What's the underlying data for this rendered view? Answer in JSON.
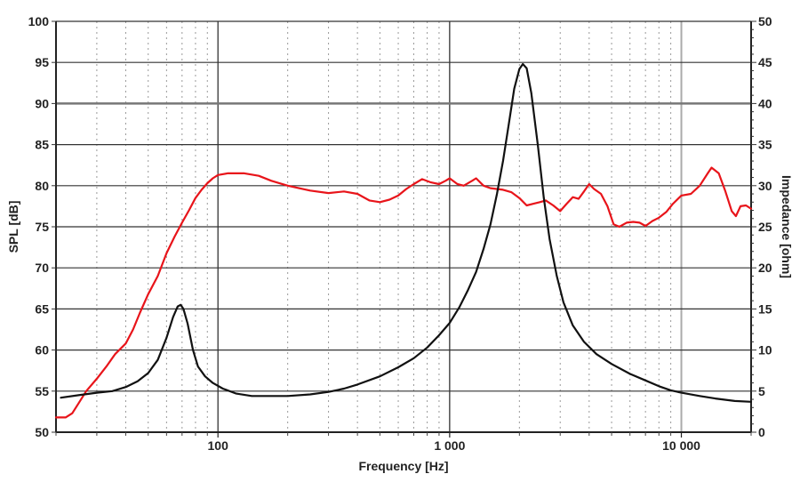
{
  "chart_data": {
    "type": "line",
    "title": "",
    "xlabel": "Frequency [Hz]",
    "ylabel": "SPL [dB]",
    "y2label": "Impedance [ohm]",
    "xscale": "log",
    "xlim": [
      20,
      20000
    ],
    "ylim": [
      50,
      100
    ],
    "y2lim": [
      0,
      50
    ],
    "grid": true,
    "x_tick_labels": [
      {
        "value": 100,
        "label": "100"
      },
      {
        "value": 1000,
        "label": "1 000"
      },
      {
        "value": 10000,
        "label": "10 000"
      }
    ],
    "y_ticks": [
      50,
      55,
      60,
      65,
      70,
      75,
      80,
      85,
      90,
      95,
      100
    ],
    "y2_ticks": [
      0,
      5,
      10,
      15,
      20,
      25,
      30,
      35,
      40,
      45,
      50
    ],
    "legend": "none",
    "series": [
      {
        "name": "SPL",
        "axis": "left",
        "color": "#e8141a",
        "points": [
          [
            20,
            51.8
          ],
          [
            22,
            51.8
          ],
          [
            23.5,
            52.3
          ],
          [
            25,
            53.5
          ],
          [
            27,
            55.0
          ],
          [
            30,
            56.5
          ],
          [
            33,
            58.0
          ],
          [
            36,
            59.5
          ],
          [
            40,
            60.8
          ],
          [
            43,
            62.5
          ],
          [
            46,
            64.5
          ],
          [
            50,
            66.8
          ],
          [
            55,
            69.0
          ],
          [
            60,
            71.8
          ],
          [
            65,
            73.8
          ],
          [
            70,
            75.5
          ],
          [
            75,
            77.0
          ],
          [
            80,
            78.5
          ],
          [
            85,
            79.5
          ],
          [
            90,
            80.3
          ],
          [
            95,
            80.9
          ],
          [
            100,
            81.3
          ],
          [
            110,
            81.5
          ],
          [
            130,
            81.5
          ],
          [
            150,
            81.2
          ],
          [
            170,
            80.6
          ],
          [
            200,
            80.0
          ],
          [
            250,
            79.4
          ],
          [
            300,
            79.1
          ],
          [
            350,
            79.3
          ],
          [
            400,
            79.0
          ],
          [
            450,
            78.2
          ],
          [
            500,
            78.0
          ],
          [
            550,
            78.3
          ],
          [
            600,
            78.8
          ],
          [
            650,
            79.6
          ],
          [
            700,
            80.2
          ],
          [
            760,
            80.8
          ],
          [
            830,
            80.4
          ],
          [
            900,
            80.2
          ],
          [
            960,
            80.6
          ],
          [
            1000,
            80.9
          ],
          [
            1080,
            80.2
          ],
          [
            1150,
            80.0
          ],
          [
            1250,
            80.6
          ],
          [
            1300,
            80.9
          ],
          [
            1400,
            80.0
          ],
          [
            1500,
            79.7
          ],
          [
            1700,
            79.5
          ],
          [
            1850,
            79.2
          ],
          [
            2000,
            78.5
          ],
          [
            2150,
            77.6
          ],
          [
            2300,
            77.8
          ],
          [
            2450,
            78.0
          ],
          [
            2600,
            78.2
          ],
          [
            2800,
            77.6
          ],
          [
            3000,
            76.9
          ],
          [
            3200,
            77.8
          ],
          [
            3400,
            78.6
          ],
          [
            3600,
            78.4
          ],
          [
            3800,
            79.3
          ],
          [
            4000,
            80.2
          ],
          [
            4200,
            79.6
          ],
          [
            4500,
            79.0
          ],
          [
            4800,
            77.5
          ],
          [
            5100,
            75.3
          ],
          [
            5400,
            75.0
          ],
          [
            5800,
            75.5
          ],
          [
            6200,
            75.6
          ],
          [
            6600,
            75.5
          ],
          [
            7000,
            75.1
          ],
          [
            7500,
            75.7
          ],
          [
            8000,
            76.1
          ],
          [
            8600,
            76.8
          ],
          [
            9200,
            77.8
          ],
          [
            10000,
            78.8
          ],
          [
            11000,
            79.0
          ],
          [
            12000,
            80.0
          ],
          [
            13000,
            81.5
          ],
          [
            13500,
            82.2
          ],
          [
            14500,
            81.5
          ],
          [
            15500,
            79.3
          ],
          [
            16500,
            76.9
          ],
          [
            17200,
            76.3
          ],
          [
            18000,
            77.5
          ],
          [
            19000,
            77.6
          ],
          [
            20000,
            77.2
          ]
        ]
      },
      {
        "name": "Impedance",
        "axis": "right",
        "color": "#111111",
        "points": [
          [
            21,
            4.2
          ],
          [
            25,
            4.5
          ],
          [
            30,
            4.8
          ],
          [
            35,
            5.0
          ],
          [
            40,
            5.5
          ],
          [
            45,
            6.2
          ],
          [
            50,
            7.2
          ],
          [
            55,
            8.8
          ],
          [
            60,
            11.5
          ],
          [
            64,
            14.0
          ],
          [
            67,
            15.3
          ],
          [
            69,
            15.5
          ],
          [
            71,
            15.0
          ],
          [
            74,
            13.2
          ],
          [
            78,
            10.0
          ],
          [
            82,
            8.0
          ],
          [
            88,
            6.8
          ],
          [
            95,
            6.0
          ],
          [
            105,
            5.3
          ],
          [
            120,
            4.7
          ],
          [
            140,
            4.4
          ],
          [
            170,
            4.4
          ],
          [
            200,
            4.4
          ],
          [
            250,
            4.6
          ],
          [
            300,
            4.9
          ],
          [
            350,
            5.3
          ],
          [
            400,
            5.8
          ],
          [
            500,
            6.8
          ],
          [
            600,
            7.9
          ],
          [
            700,
            9.0
          ],
          [
            800,
            10.3
          ],
          [
            900,
            11.8
          ],
          [
            1000,
            13.3
          ],
          [
            1100,
            15.2
          ],
          [
            1200,
            17.3
          ],
          [
            1300,
            19.5
          ],
          [
            1400,
            22.3
          ],
          [
            1500,
            25.3
          ],
          [
            1600,
            29.0
          ],
          [
            1700,
            33.0
          ],
          [
            1800,
            37.5
          ],
          [
            1900,
            41.8
          ],
          [
            2000,
            44.2
          ],
          [
            2070,
            44.8
          ],
          [
            2150,
            44.3
          ],
          [
            2250,
            41.3
          ],
          [
            2400,
            35.0
          ],
          [
            2550,
            28.5
          ],
          [
            2700,
            23.5
          ],
          [
            2900,
            19.0
          ],
          [
            3100,
            15.8
          ],
          [
            3400,
            13.0
          ],
          [
            3800,
            11.0
          ],
          [
            4300,
            9.5
          ],
          [
            5000,
            8.3
          ],
          [
            6000,
            7.1
          ],
          [
            7000,
            6.3
          ],
          [
            8000,
            5.6
          ],
          [
            9000,
            5.1
          ],
          [
            10000,
            4.8
          ],
          [
            12000,
            4.4
          ],
          [
            14000,
            4.1
          ],
          [
            17000,
            3.8
          ],
          [
            20000,
            3.7
          ]
        ]
      }
    ]
  },
  "labels": {
    "x_axis_title": "Frequency [Hz]",
    "y_axis_title": "SPL [dB]",
    "y2_axis_title": "Impedance [ohm]"
  }
}
